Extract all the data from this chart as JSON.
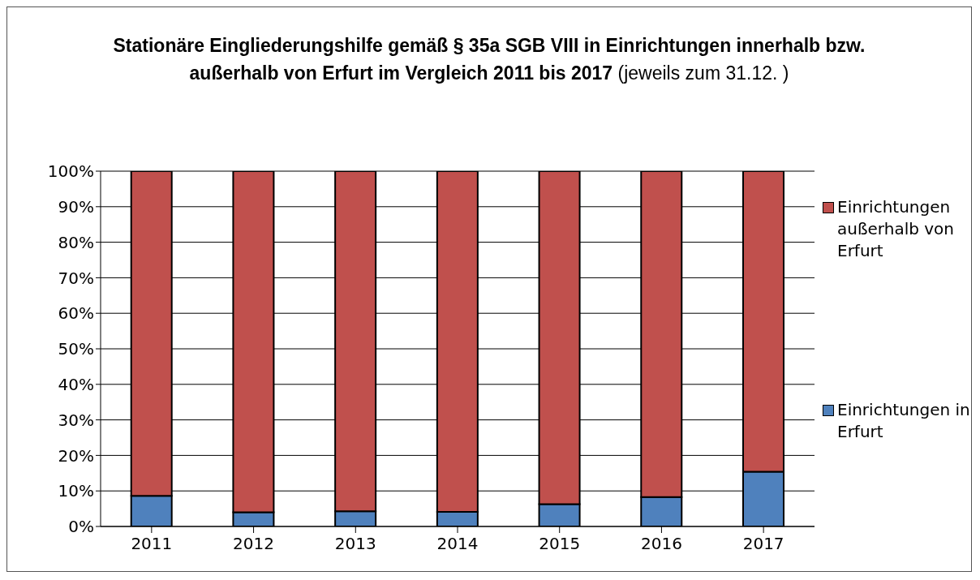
{
  "chart_data": {
    "type": "bar",
    "title": "Stationäre Eingliederungshilfe gemäß § 35a SGB VIII in Einrichtungen innerhalb bzw. außerhalb von Erfurt im Vergleich  2011 bis 2017",
    "subtitle": "(jeweils zum 31.12. )",
    "categories": [
      "2011",
      "2012",
      "2013",
      "2014",
      "2015",
      "2016",
      "2017"
    ],
    "stacked": true,
    "series": [
      {
        "name": "Einrichtungen in Erfurt",
        "color": "#4f81bd",
        "values": [
          8.6,
          4.0,
          4.3,
          4.1,
          6.3,
          8.3,
          15.4
        ]
      },
      {
        "name": "Einrichtungen außerhalb von Erfurt",
        "color": "#c0504d",
        "values": [
          91.4,
          96.0,
          95.7,
          95.9,
          93.7,
          91.7,
          84.6
        ]
      }
    ],
    "ylim": [
      0,
      100
    ],
    "yticks": [
      {
        "value": 0,
        "label": "0%"
      },
      {
        "value": 10,
        "label": "10%"
      },
      {
        "value": 20,
        "label": "20%"
      },
      {
        "value": 30,
        "label": "30%"
      },
      {
        "value": 40,
        "label": "40%"
      },
      {
        "value": 50,
        "label": "50%"
      },
      {
        "value": 60,
        "label": "60%"
      },
      {
        "value": 70,
        "label": "70%"
      },
      {
        "value": 80,
        "label": "80%"
      },
      {
        "value": 90,
        "label": "90%"
      },
      {
        "value": 100,
        "label": "100%"
      }
    ],
    "grid": "y",
    "legend": "right"
  }
}
